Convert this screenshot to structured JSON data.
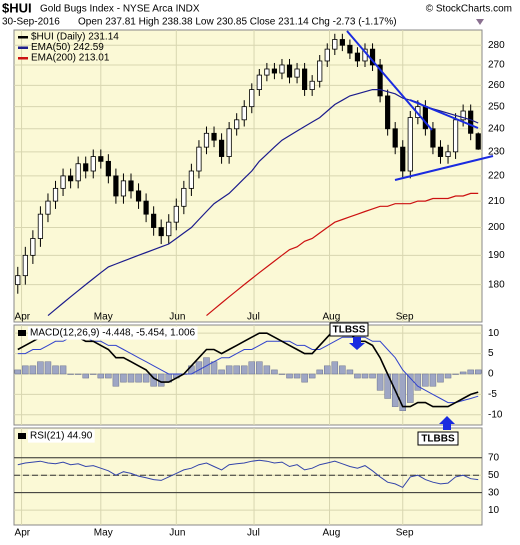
{
  "header": {
    "symbol": "$HUI",
    "name": "Gold Bugs Index - NYSE Arca INDX",
    "date": "30-Sep-2016",
    "quote": "Open 237.81  High 238.38  Low 230.85  Close 231.14  Chg -2.73 (-1.17%)",
    "source": "© StockCharts.com"
  },
  "chart_data": [
    {
      "type": "candlestick",
      "log_scale": true,
      "grid": true,
      "legend": "top-left",
      "xlim": [
        -0.5,
        61.5
      ],
      "xticks": [
        {
          "value": 0.5,
          "label": "Apr"
        },
        {
          "value": 11,
          "label": "May"
        },
        {
          "value": 21,
          "label": "Jun"
        },
        {
          "value": 31.3,
          "label": "Jul"
        },
        {
          "value": 41.3,
          "label": "Aug"
        },
        {
          "value": 51,
          "label": "Sep"
        }
      ],
      "ylim": [
        168,
        288
      ],
      "yticks": [
        180,
        190,
        200,
        210,
        220,
        230,
        240,
        250,
        260,
        270,
        280
      ],
      "series": [
        {
          "name": "$HUI (Daily) 231.14",
          "type": "candlestick",
          "color": "#000000",
          "open": [
            180,
            183,
            190,
            196,
            205,
            210,
            215,
            220,
            218,
            225,
            222,
            228,
            226,
            220,
            212,
            218,
            214,
            210,
            205,
            200,
            197,
            202,
            208,
            215,
            222,
            232,
            238,
            235,
            228,
            240,
            244,
            250,
            258,
            265,
            268,
            266,
            270,
            264,
            268,
            258,
            262,
            272,
            278,
            283,
            280,
            276,
            272,
            278,
            270,
            255,
            240,
            232,
            222,
            245,
            250,
            240,
            232,
            228,
            230,
            244,
            248,
            237.81
          ],
          "high": [
            186,
            193,
            199,
            208,
            213,
            218,
            223,
            223,
            228,
            228,
            231,
            231,
            229,
            223,
            221,
            221,
            217,
            213,
            208,
            203,
            205,
            211,
            218,
            225,
            235,
            241,
            241,
            238,
            243,
            247,
            253,
            261,
            268,
            271,
            271,
            273,
            273,
            271,
            271,
            265,
            275,
            281,
            286,
            286,
            283,
            279,
            281,
            281,
            273,
            258,
            243,
            235,
            248,
            253,
            253,
            243,
            235,
            233,
            247,
            251,
            251,
            238.38
          ],
          "low": [
            177,
            180,
            187,
            193,
            202,
            207,
            212,
            215,
            215,
            219,
            219,
            223,
            217,
            209,
            209,
            211,
            207,
            202,
            197,
            194,
            194,
            199,
            205,
            212,
            219,
            229,
            232,
            225,
            225,
            237,
            241,
            247,
            255,
            262,
            263,
            263,
            261,
            261,
            255,
            255,
            259,
            269,
            275,
            277,
            273,
            269,
            269,
            267,
            252,
            237,
            229,
            219,
            219,
            242,
            237,
            229,
            225,
            225,
            227,
            241,
            235,
            230.85
          ],
          "close": [
            183,
            190,
            196,
            205,
            210,
            215,
            220,
            218,
            225,
            222,
            228,
            226,
            220,
            212,
            218,
            214,
            210,
            205,
            200,
            197,
            202,
            208,
            215,
            222,
            232,
            238,
            235,
            228,
            240,
            244,
            250,
            258,
            265,
            268,
            266,
            270,
            264,
            268,
            258,
            262,
            272,
            278,
            283,
            280,
            276,
            272,
            278,
            270,
            255,
            240,
            232,
            222,
            245,
            250,
            240,
            232,
            228,
            230,
            244,
            248,
            238,
            231.14
          ]
        },
        {
          "name": "EMA(50) 242.59",
          "type": "line",
          "color": "#1c1c8c",
          "values": [
            null,
            null,
            null,
            null,
            170,
            172,
            174,
            176,
            178,
            180,
            182,
            184,
            186,
            187,
            188,
            189,
            190,
            191,
            192,
            193,
            194,
            196,
            198,
            200,
            203,
            206,
            209,
            211,
            213,
            216,
            219,
            222,
            226,
            229,
            232,
            235,
            237,
            239,
            241,
            243,
            245,
            248,
            251,
            253,
            255,
            256,
            257,
            258,
            258,
            257,
            256,
            254,
            253,
            252,
            250,
            249,
            248,
            247,
            246,
            245,
            244,
            242.59
          ]
        },
        {
          "name": "EMA(200) 213.01",
          "type": "line",
          "color": "#cc1111",
          "values": [
            null,
            null,
            null,
            null,
            null,
            null,
            null,
            null,
            null,
            null,
            null,
            null,
            null,
            null,
            null,
            null,
            null,
            null,
            null,
            null,
            null,
            null,
            null,
            null,
            null,
            170,
            172,
            174,
            176,
            178,
            180,
            182,
            184,
            186,
            188,
            190,
            192,
            193,
            195,
            196,
            198,
            200,
            202,
            203,
            204,
            205,
            206,
            207,
            208,
            208,
            209,
            209,
            209,
            210,
            210,
            211,
            211,
            211,
            212,
            212,
            213,
            213.01
          ]
        }
      ]
    },
    {
      "type": "macd",
      "title": "MACD(12,26,9) -4.448, -5.454, 1.006",
      "grid": true,
      "ylim": [
        -12.5,
        12
      ],
      "yticks": [
        -10,
        -5,
        0,
        5,
        10
      ],
      "annotations": [
        "TLBSS",
        "TLBBS"
      ],
      "macd": {
        "color": "#000000",
        "values": [
          6,
          7,
          8,
          9,
          10,
          10,
          10,
          9,
          9,
          8,
          8,
          7,
          6,
          4,
          4,
          3,
          2,
          1,
          -1,
          -2,
          -2,
          -1,
          0,
          2,
          4,
          6,
          6,
          5,
          6,
          7,
          8,
          9,
          10,
          10,
          9,
          8,
          7,
          6,
          5,
          5,
          7,
          9,
          11,
          11,
          10,
          8,
          8,
          7,
          4,
          0,
          -4,
          -8,
          -8,
          -7,
          -7,
          -8,
          -8,
          -8,
          -7,
          -6,
          -5,
          -4.448
        ]
      },
      "signal": {
        "color": "#3344cc",
        "values": [
          5,
          5,
          6,
          6,
          7,
          8,
          8,
          9,
          9,
          9,
          8,
          8,
          7,
          7,
          6,
          5,
          4,
          3,
          2,
          1,
          0,
          0,
          0,
          0,
          1,
          2,
          3,
          4,
          4,
          5,
          6,
          6,
          7,
          8,
          8,
          8,
          8,
          7,
          7,
          6,
          6,
          7,
          8,
          9,
          9,
          9,
          9,
          8,
          8,
          6,
          4,
          1,
          -1,
          -3,
          -4,
          -5,
          -6,
          -7,
          -7,
          -6.5,
          -6,
          -5.454
        ]
      },
      "histogram": {
        "color": "#9ea6c4",
        "values": [
          1,
          2,
          2,
          3,
          3,
          2,
          2,
          0,
          0,
          -1,
          0,
          -1,
          -1,
          -3,
          -2,
          -2,
          -2,
          -2,
          -3,
          -3,
          -2,
          -1,
          0,
          2,
          3,
          4,
          3,
          1,
          2,
          2,
          2,
          3,
          3,
          2,
          1,
          0,
          -1,
          -1,
          -2,
          -1,
          1,
          2,
          3,
          2,
          1,
          -1,
          -1,
          -1,
          -4,
          -6,
          -8,
          -9,
          -7,
          -4,
          -3,
          -3,
          -2,
          -1,
          0,
          0.5,
          1,
          1.006
        ]
      }
    },
    {
      "type": "line",
      "title": "RSI(21) 44.90",
      "grid": true,
      "ylim": [
        -7,
        104
      ],
      "yticks": [
        10,
        30,
        50,
        70
      ],
      "reference_lines": [
        30,
        70
      ],
      "midline": 50,
      "color": "#3344aa",
      "values": [
        62,
        64,
        65,
        66,
        64,
        63,
        65,
        62,
        63,
        60,
        61,
        58,
        55,
        50,
        54,
        52,
        49,
        47,
        45,
        44,
        48,
        52,
        56,
        58,
        62,
        64,
        60,
        56,
        62,
        63,
        64,
        66,
        67,
        66,
        64,
        65,
        60,
        62,
        56,
        58,
        62,
        64,
        66,
        63,
        60,
        58,
        61,
        55,
        48,
        42,
        40,
        36,
        48,
        50,
        45,
        42,
        40,
        41,
        48,
        50,
        46,
        44.9
      ]
    }
  ]
}
